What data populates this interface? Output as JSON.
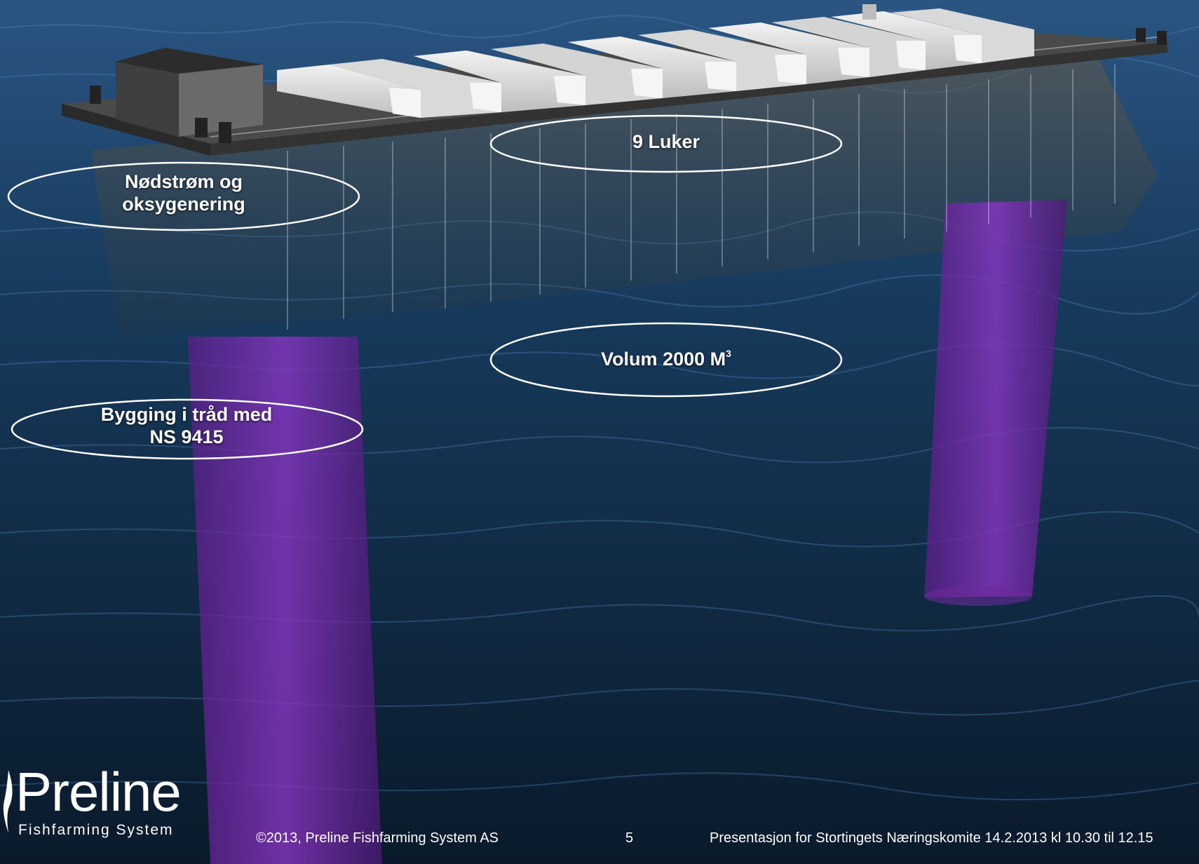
{
  "callouts": {
    "luker": "9 Luker",
    "nodstrom_line1": "Nødstrøm og",
    "nodstrom_line2": "oksygenering",
    "volum_text": "Volum 2000 M",
    "volum_sup": "3",
    "bygging_line1": "Bygging i tråd med",
    "bygging_line2": "NS 9415"
  },
  "logo": {
    "name": "Preline",
    "subtitle": "Fishfarming System"
  },
  "footer": {
    "copyright": "©2013, Preline Fishfarming System AS",
    "page_number": "5",
    "presentation": "Presentasjon for Stortingets Næringskomite 14.2.2013 kl 10.30 til 12.15"
  },
  "colors": {
    "sea_dark": "#0b1c2e",
    "sea_mid": "#1d3f63",
    "pipe_purple": "#7a2bb0",
    "text": "#ffffff"
  }
}
